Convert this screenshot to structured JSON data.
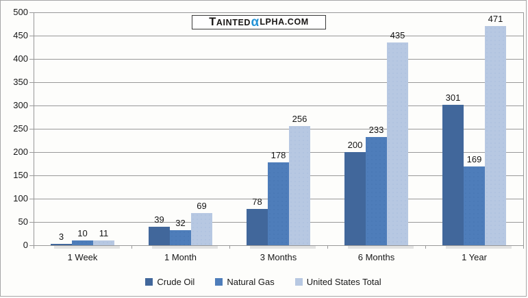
{
  "logo": {
    "part1": "TAINTED",
    "alpha": "α",
    "part2": "LPHA.COM"
  },
  "colors": {
    "crude_oil": "#41679B",
    "natural_gas": "#4E7DBA",
    "united_states_total": "#B7C8E2",
    "logo_alpha_blue": "#2493D6",
    "gridline": "#989898"
  },
  "chart_data": {
    "type": "bar",
    "title": "",
    "xlabel": "",
    "ylabel": "",
    "categories": [
      "1 Week",
      "1 Month",
      "3 Months",
      "6 Months",
      "1 Year"
    ],
    "series": [
      {
        "name": "Crude Oil",
        "color": "#41679B",
        "values": [
          3,
          39,
          78,
          200,
          301
        ]
      },
      {
        "name": "Natural Gas",
        "color": "#4E7DBA",
        "values": [
          10,
          32,
          178,
          233,
          169
        ]
      },
      {
        "name": "United States Total",
        "color": "#B7C8E2",
        "values": [
          11,
          69,
          256,
          435,
          471
        ]
      }
    ],
    "ylim": [
      0,
      500
    ],
    "ytick_step": 50,
    "yticks": [
      0,
      50,
      100,
      150,
      200,
      250,
      300,
      350,
      400,
      450,
      500
    ],
    "grid": true,
    "data_labels": true,
    "legend_position": "bottom"
  }
}
